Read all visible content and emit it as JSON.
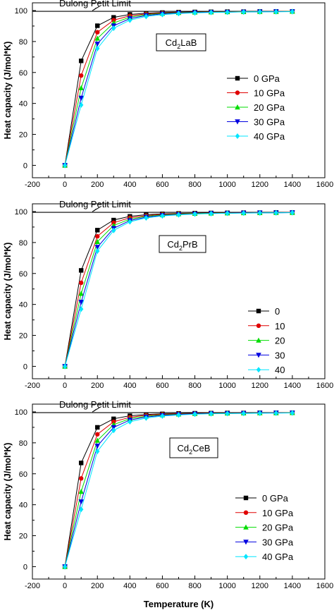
{
  "chart_data": [
    {
      "type": "line",
      "annotation": "Dulong Petit Limit",
      "compound_main": "Cd",
      "compound_sub": "2",
      "compound_rest": "LaB",
      "ylabel": "Heat capacity (J/mol*K)",
      "xlabel": "",
      "xlim": [
        -200,
        1600
      ],
      "ylim": [
        -8,
        105
      ],
      "xticks": [
        "-200",
        "0",
        "200",
        "400",
        "600",
        "800",
        "1000",
        "1200",
        "1400",
        "1600"
      ],
      "yticks": [
        "0",
        "20",
        "40",
        "60",
        "80",
        "100"
      ],
      "limit_value": 99.5,
      "legend_position": "middle-right",
      "x": [
        0,
        100,
        200,
        300,
        400,
        500,
        600,
        700,
        800,
        900,
        1000,
        1100,
        1200,
        1300,
        1400
      ],
      "series": [
        {
          "name": "0 GPa",
          "marker": "square",
          "color": "#000000",
          "values": [
            0,
            67.5,
            90.2,
            95.6,
            97.5,
            98.3,
            98.7,
            99.0,
            99.1,
            99.2,
            99.3,
            99.3,
            99.4,
            99.4,
            99.4
          ]
        },
        {
          "name": "10 GPa",
          "marker": "circle",
          "color": "#e00000",
          "values": [
            0,
            58.0,
            86.0,
            93.8,
            96.6,
            97.8,
            98.4,
            98.8,
            99.0,
            99.1,
            99.2,
            99.3,
            99.3,
            99.4,
            99.4
          ]
        },
        {
          "name": "20 GPa",
          "marker": "triangle-up",
          "color": "#00dd00",
          "values": [
            0,
            50.0,
            82.0,
            92.0,
            95.7,
            97.3,
            98.1,
            98.6,
            98.9,
            99.0,
            99.1,
            99.2,
            99.3,
            99.3,
            99.4
          ]
        },
        {
          "name": "30 GPa",
          "marker": "triangle-down",
          "color": "#0000e0",
          "values": [
            0,
            43.5,
            78.5,
            90.2,
            94.8,
            96.8,
            97.8,
            98.4,
            98.7,
            98.9,
            99.0,
            99.1,
            99.2,
            99.3,
            99.3
          ]
        },
        {
          "name": "40 GPa",
          "marker": "diamond",
          "color": "#00e6ff",
          "values": [
            0,
            39.0,
            75.5,
            88.6,
            93.8,
            96.2,
            97.4,
            98.1,
            98.5,
            98.8,
            98.9,
            99.1,
            99.2,
            99.2,
            99.3
          ]
        }
      ]
    },
    {
      "type": "line",
      "annotation": "Dulong Petit Limit",
      "compound_main": "Cd",
      "compound_sub": "2",
      "compound_rest": "PrB",
      "ylabel": "Heat capacity (J/mol*K)",
      "xlabel": "",
      "xlim": [
        -200,
        1600
      ],
      "ylim": [
        -8,
        105
      ],
      "xticks": [
        "-200",
        "0",
        "200",
        "400",
        "600",
        "800",
        "1000",
        "1200",
        "1400",
        "1600"
      ],
      "yticks": [
        "0",
        "20",
        "40",
        "60",
        "80",
        "100"
      ],
      "limit_value": 99.5,
      "legend_position": "bottom-right",
      "x": [
        0,
        100,
        200,
        300,
        400,
        500,
        600,
        700,
        800,
        900,
        1000,
        1100,
        1200,
        1300,
        1400
      ],
      "series": [
        {
          "name": "0",
          "marker": "square",
          "color": "#000000",
          "values": [
            0,
            62.0,
            88.0,
            94.5,
            96.9,
            98.0,
            98.5,
            98.8,
            99.0,
            99.1,
            99.2,
            99.3,
            99.3,
            99.4,
            99.4
          ]
        },
        {
          "name": "10",
          "marker": "circle",
          "color": "#e00000",
          "values": [
            0,
            54.0,
            84.0,
            92.8,
            96.0,
            97.4,
            98.2,
            98.6,
            98.9,
            99.0,
            99.1,
            99.2,
            99.3,
            99.3,
            99.4
          ]
        },
        {
          "name": "20",
          "marker": "triangle-up",
          "color": "#00dd00",
          "values": [
            0,
            47.0,
            80.5,
            91.0,
            95.1,
            96.9,
            97.8,
            98.4,
            98.7,
            98.9,
            99.0,
            99.1,
            99.2,
            99.3,
            99.3
          ]
        },
        {
          "name": "30",
          "marker": "triangle-down",
          "color": "#0000e0",
          "values": [
            0,
            41.5,
            77.0,
            89.2,
            94.2,
            96.4,
            97.5,
            98.1,
            98.5,
            98.8,
            98.9,
            99.1,
            99.2,
            99.2,
            99.3
          ]
        },
        {
          "name": "40",
          "marker": "diamond",
          "color": "#00e6ff",
          "values": [
            0,
            37.0,
            74.5,
            87.8,
            93.4,
            95.9,
            97.2,
            97.9,
            98.4,
            98.7,
            98.9,
            99.0,
            99.1,
            99.2,
            99.3
          ]
        }
      ]
    },
    {
      "type": "line",
      "annotation": "Dulong Petit Limit",
      "compound_main": "Cd",
      "compound_sub": "2",
      "compound_rest": "CeB",
      "ylabel": "Heat capacity (J/mol*K)",
      "xlabel": "Temperature (K)",
      "xlim": [
        -200,
        1600
      ],
      "ylim": [
        -8,
        105
      ],
      "xticks": [
        "-200",
        "0",
        "200",
        "400",
        "600",
        "800",
        "1000",
        "1200",
        "1400",
        "1600"
      ],
      "yticks": [
        "0",
        "20",
        "40",
        "60",
        "80",
        "100"
      ],
      "limit_value": 99.5,
      "legend_position": "bottom-right",
      "x": [
        0,
        100,
        200,
        300,
        400,
        500,
        600,
        700,
        800,
        900,
        1000,
        1100,
        1200,
        1300,
        1400
      ],
      "series": [
        {
          "name": "0 GPa",
          "marker": "square",
          "color": "#000000",
          "values": [
            0,
            67.0,
            90.0,
            95.5,
            97.5,
            98.3,
            98.7,
            99.0,
            99.1,
            99.2,
            99.3,
            99.3,
            99.4,
            99.4,
            99.4
          ]
        },
        {
          "name": "10 GPa",
          "marker": "circle",
          "color": "#e00000",
          "values": [
            0,
            57.0,
            85.5,
            93.6,
            96.5,
            97.8,
            98.4,
            98.8,
            99.0,
            99.1,
            99.2,
            99.3,
            99.3,
            99.4,
            99.4
          ]
        },
        {
          "name": "20 GPa",
          "marker": "triangle-up",
          "color": "#00dd00",
          "values": [
            0,
            48.5,
            81.5,
            91.8,
            95.6,
            97.2,
            98.0,
            98.5,
            98.8,
            99.0,
            99.1,
            99.2,
            99.3,
            99.3,
            99.4
          ]
        },
        {
          "name": "30 GPa",
          "marker": "triangle-down",
          "color": "#0000e0",
          "values": [
            0,
            42.0,
            78.0,
            90.0,
            94.7,
            96.7,
            97.7,
            98.3,
            98.7,
            98.9,
            99.0,
            99.1,
            99.2,
            99.3,
            99.3
          ]
        },
        {
          "name": "40 GPa",
          "marker": "diamond",
          "color": "#00e6ff",
          "values": [
            0,
            37.0,
            74.5,
            88.0,
            93.6,
            96.0,
            97.3,
            98.0,
            98.5,
            98.8,
            98.9,
            99.0,
            99.1,
            99.2,
            99.3
          ]
        }
      ]
    }
  ]
}
